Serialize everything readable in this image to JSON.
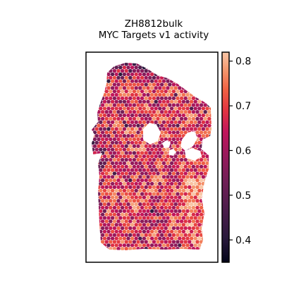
{
  "chart_data": {
    "type": "heatmap",
    "title": "ZH8812bulk",
    "subtitle": "MYC Targets v1 activity",
    "xlabel": "",
    "ylabel": "",
    "grid": false,
    "legend": "right colorbar",
    "colorbar": {
      "colormap": "rocket",
      "range": [
        0.35,
        0.82
      ],
      "ticks": [
        0.4,
        0.5,
        0.6,
        0.7,
        0.8
      ],
      "tick_labels": [
        "0.4",
        "0.5",
        "0.6",
        "0.7",
        "0.8"
      ]
    },
    "spot_value_summary": {
      "typical": 0.68,
      "min": 0.36,
      "max": 0.82
    }
  }
}
